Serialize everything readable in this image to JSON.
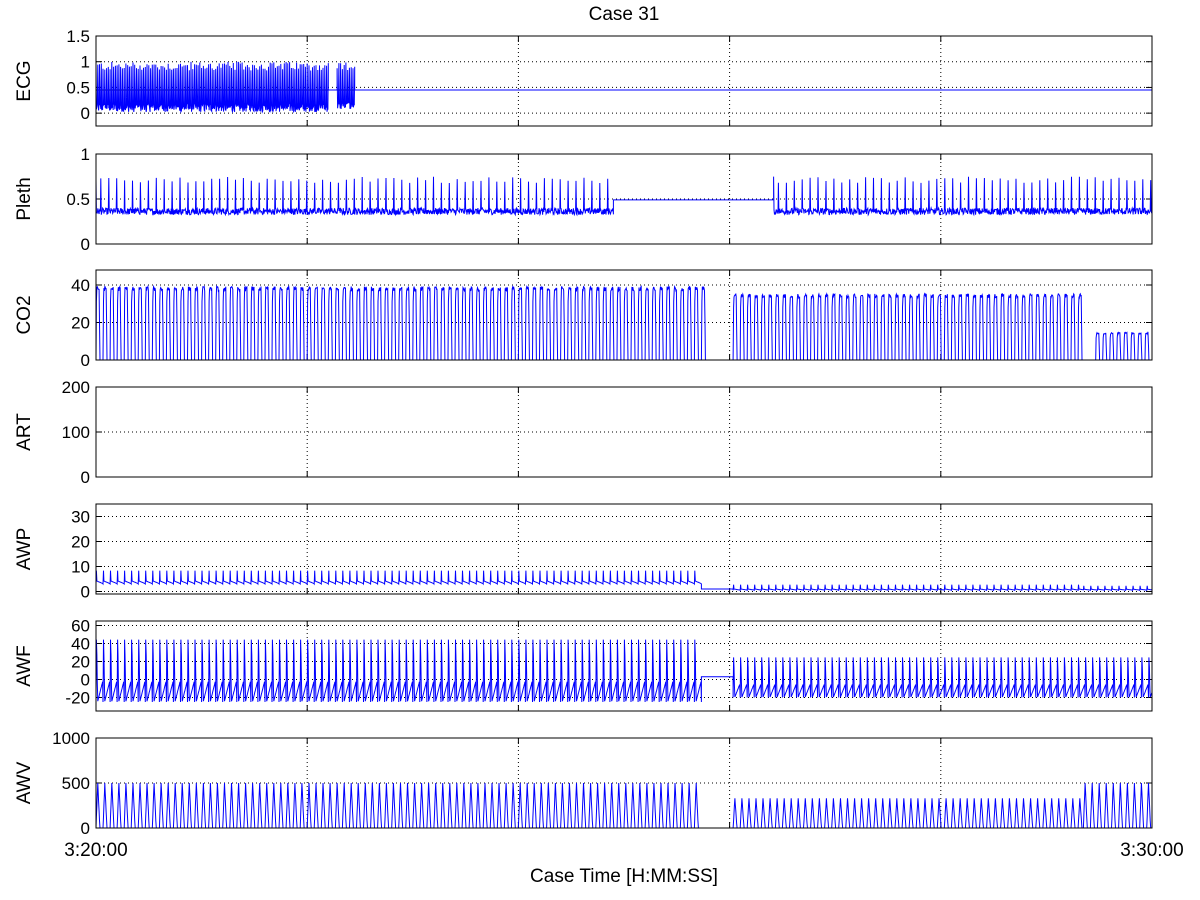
{
  "chart_data": {
    "type": "line",
    "title": "Case 31",
    "xlabel": "Case Time [H:MM:SS]",
    "x_ticks": [
      "3:20:00",
      "3:30:00"
    ],
    "x_range": [
      "3:20:00",
      "3:30:00"
    ],
    "grid": true,
    "line_color": "#0000ff",
    "panels": [
      {
        "ylabel": "ECG",
        "ylim": [
          -0.25,
          1.5
        ],
        "yticks": [
          "0",
          "0.5",
          "1",
          "1.5"
        ],
        "ytick_values": [
          0,
          0.5,
          1,
          1.5
        ],
        "baseline": 0.45,
        "segments": [
          {
            "t_start": 0,
            "t_end": 132,
            "pattern": "spikes",
            "period": 1.0,
            "low": -0.15,
            "high": 1.0
          },
          {
            "t_start": 132,
            "t_end": 137,
            "pattern": "flat",
            "value": 0.45
          },
          {
            "t_start": 137,
            "t_end": 147,
            "pattern": "spikes",
            "period": 1.0,
            "low": -0.1,
            "high": 1.0
          },
          {
            "t_start": 147,
            "t_end": 600,
            "pattern": "flat",
            "value": 0.45
          }
        ]
      },
      {
        "ylabel": "Pleth",
        "ylim": [
          0,
          1
        ],
        "yticks": [
          "0",
          "0.5",
          "1"
        ],
        "ytick_values": [
          0,
          0.5,
          1
        ],
        "segments": [
          {
            "t_start": 0,
            "t_end": 294,
            "pattern": "spikes",
            "period": 0.9,
            "low": 0.25,
            "high": 0.75
          },
          {
            "t_start": 294,
            "t_end": 385,
            "pattern": "flat",
            "value": 0.49
          },
          {
            "t_start": 385,
            "t_end": 600,
            "pattern": "spikes",
            "period": 0.9,
            "low": 0.25,
            "high": 0.75
          }
        ]
      },
      {
        "ylabel": "CO2",
        "ylim": [
          0,
          48
        ],
        "yticks": [
          "0",
          "20",
          "40"
        ],
        "ytick_values": [
          0,
          20,
          40
        ],
        "segments": [
          {
            "t_start": 0,
            "t_end": 347,
            "pattern": "capno",
            "period": 4.0,
            "low": 0,
            "high": 40
          },
          {
            "t_start": 347,
            "t_end": 362,
            "pattern": "flat",
            "value": 0
          },
          {
            "t_start": 362,
            "t_end": 561,
            "pattern": "capno",
            "period": 4.0,
            "low": 0,
            "high": 36
          },
          {
            "t_start": 561,
            "t_end": 568,
            "pattern": "flat",
            "value": 0
          },
          {
            "t_start": 568,
            "t_end": 600,
            "pattern": "capno",
            "period": 4.0,
            "low": 0,
            "high": 15
          }
        ]
      },
      {
        "ylabel": "ART",
        "ylim": [
          0,
          200
        ],
        "yticks": [
          "0",
          "100",
          "200"
        ],
        "ytick_values": [
          0,
          100,
          200
        ],
        "segments": []
      },
      {
        "ylabel": "AWP",
        "ylim": [
          -1,
          35
        ],
        "yticks": [
          "0",
          "10",
          "20",
          "30"
        ],
        "ytick_values": [
          0,
          10,
          20,
          30
        ],
        "segments": [
          {
            "t_start": 0,
            "t_end": 344,
            "pattern": "vent",
            "period": 4.0,
            "low": 3,
            "high": 9
          },
          {
            "t_start": 344,
            "t_end": 362,
            "pattern": "flat",
            "value": 1
          },
          {
            "t_start": 362,
            "t_end": 561,
            "pattern": "vent",
            "period": 4.0,
            "low": 0.5,
            "high": 3
          },
          {
            "t_start": 561,
            "t_end": 600,
            "pattern": "vent",
            "period": 4.0,
            "low": 0.5,
            "high": 2.5
          }
        ]
      },
      {
        "ylabel": "AWF",
        "ylim": [
          -35,
          65
        ],
        "yticks": [
          "-20",
          "0",
          "20",
          "40",
          "60"
        ],
        "ytick_values": [
          -20,
          0,
          20,
          40,
          60
        ],
        "segments": [
          {
            "t_start": 0,
            "t_end": 344,
            "pattern": "flow",
            "period": 4.0,
            "low": -25,
            "high": 45
          },
          {
            "t_start": 344,
            "t_end": 362,
            "pattern": "flat",
            "value": 3
          },
          {
            "t_start": 362,
            "t_end": 600,
            "pattern": "flow",
            "period": 4.0,
            "low": -20,
            "high": 25
          }
        ]
      },
      {
        "ylabel": "AWV",
        "ylim": [
          0,
          1000
        ],
        "yticks": [
          "0",
          "500",
          "1000"
        ],
        "ytick_values": [
          0,
          500,
          1000
        ],
        "segments": [
          {
            "t_start": 0,
            "t_end": 344,
            "pattern": "volume",
            "period": 4.0,
            "low": 0,
            "high": 500
          },
          {
            "t_start": 344,
            "t_end": 362,
            "pattern": "flat",
            "value": 0
          },
          {
            "t_start": 362,
            "t_end": 561,
            "pattern": "volume",
            "period": 4.0,
            "low": 0,
            "high": 330
          },
          {
            "t_start": 561,
            "t_end": 600,
            "pattern": "volume",
            "period": 4.0,
            "low": 0,
            "high": 500
          }
        ]
      }
    ]
  }
}
